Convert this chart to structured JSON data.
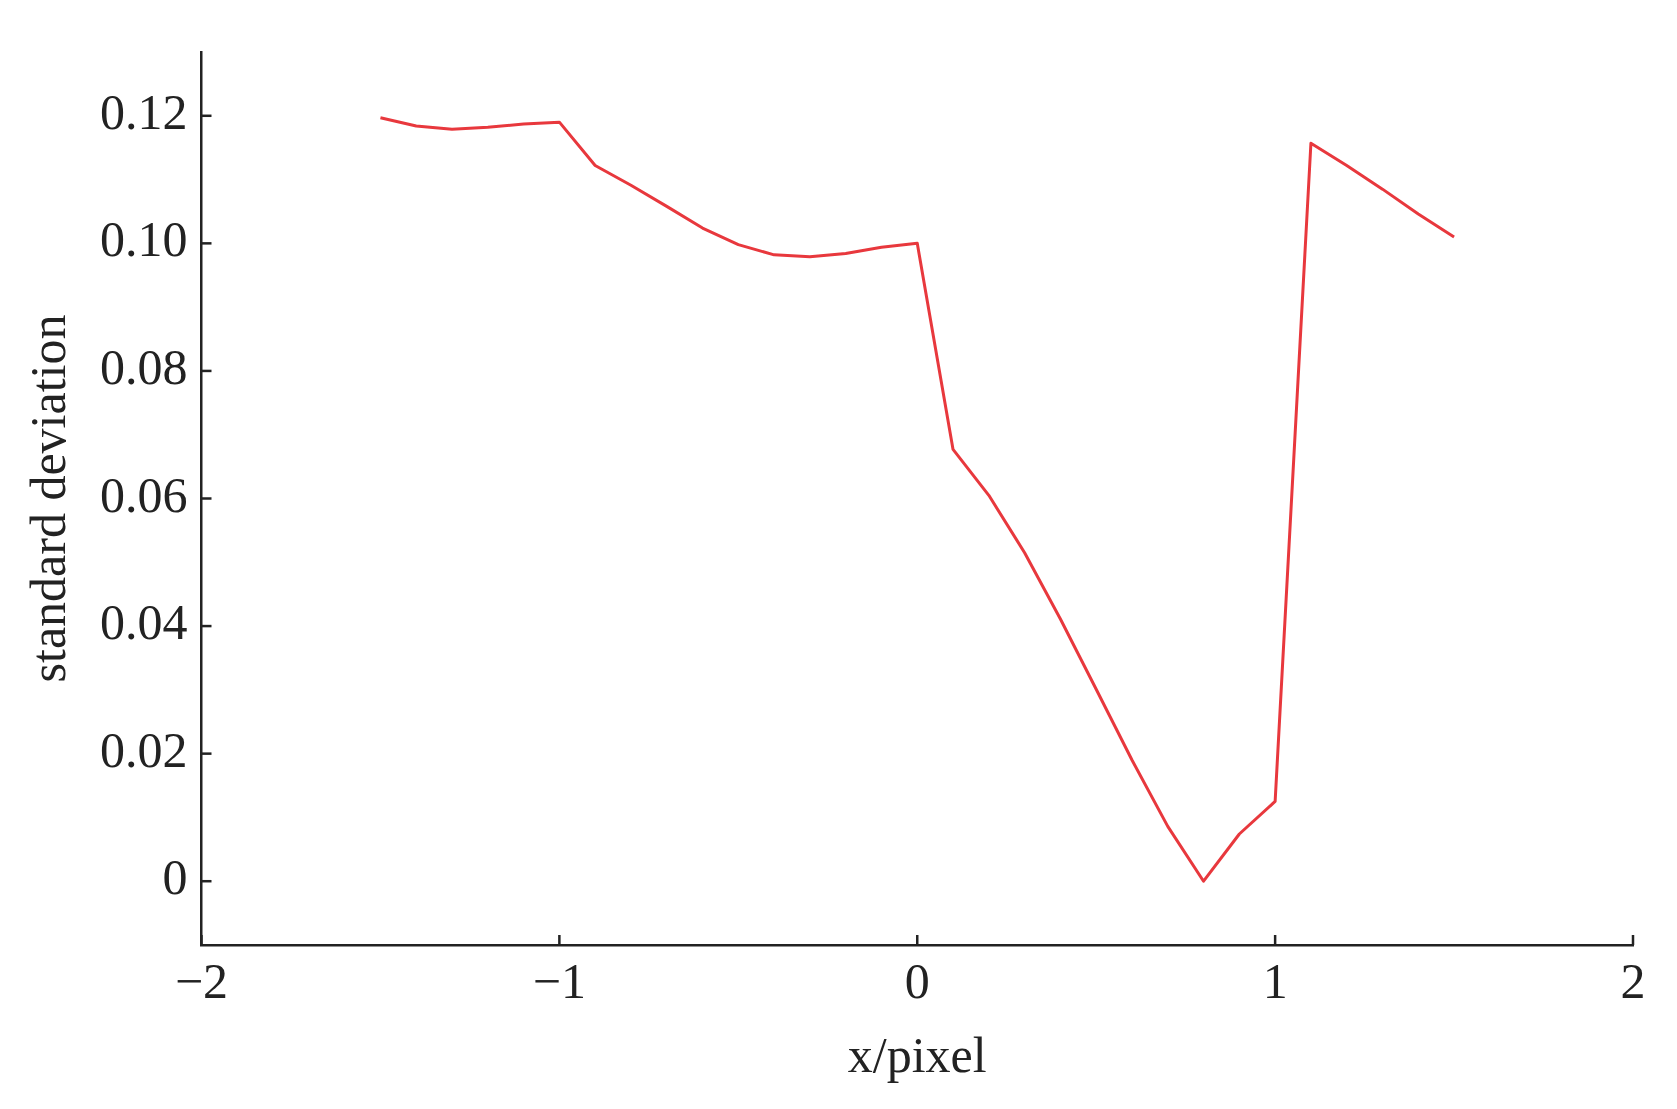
{
  "chart_data": {
    "type": "line",
    "xlabel": "x/pixel",
    "ylabel": "standard deviation",
    "x": [
      -1.5,
      -1.4,
      -1.3,
      -1.2,
      -1.1,
      -1.0,
      -0.9,
      -0.8,
      -0.7,
      -0.6,
      -0.5,
      -0.4,
      -0.3,
      -0.2,
      -0.1,
      0,
      0.1,
      0.2,
      0.3,
      0.4,
      0.5,
      0.6,
      0.7,
      0.8,
      0.9,
      1.0,
      1.1,
      1.2,
      1.3,
      1.4,
      1.5
    ],
    "series": [
      {
        "color": "#e8383d",
        "values": [
          0.1197,
          0.1184,
          0.1179,
          0.1182,
          0.1187,
          0.119,
          0.1122,
          0.1091,
          0.1058,
          0.1024,
          0.0998,
          0.0982,
          0.0979,
          0.0984,
          0.0994,
          0.1,
          0.0677,
          0.0605,
          0.0515,
          0.0411,
          0.0301,
          0.019,
          0.0086,
          0,
          0.0074,
          0.0125,
          0.1157,
          0.1122,
          0.1085,
          0.1046,
          0.101
        ]
      }
    ],
    "xlim": [
      -2,
      2
    ],
    "xticks": [
      {
        "value": -2,
        "label": "−2"
      },
      {
        "value": -1,
        "label": "−1"
      },
      0,
      1,
      2
    ],
    "ylim": [
      -0.01,
      0.13
    ],
    "yticks": [
      0,
      {
        "value": 0.02,
        "label": "0.02"
      },
      {
        "value": 0.04,
        "label": "0.04"
      },
      {
        "value": 0.06,
        "label": "0.06"
      },
      {
        "value": 0.08,
        "label": "0.08"
      },
      {
        "value": 0.1,
        "label": "0.10"
      },
      {
        "value": 0.12,
        "label": "0.12"
      }
    ],
    "grid": false,
    "legend": false,
    "marker": "none",
    "line_style": "solid"
  }
}
